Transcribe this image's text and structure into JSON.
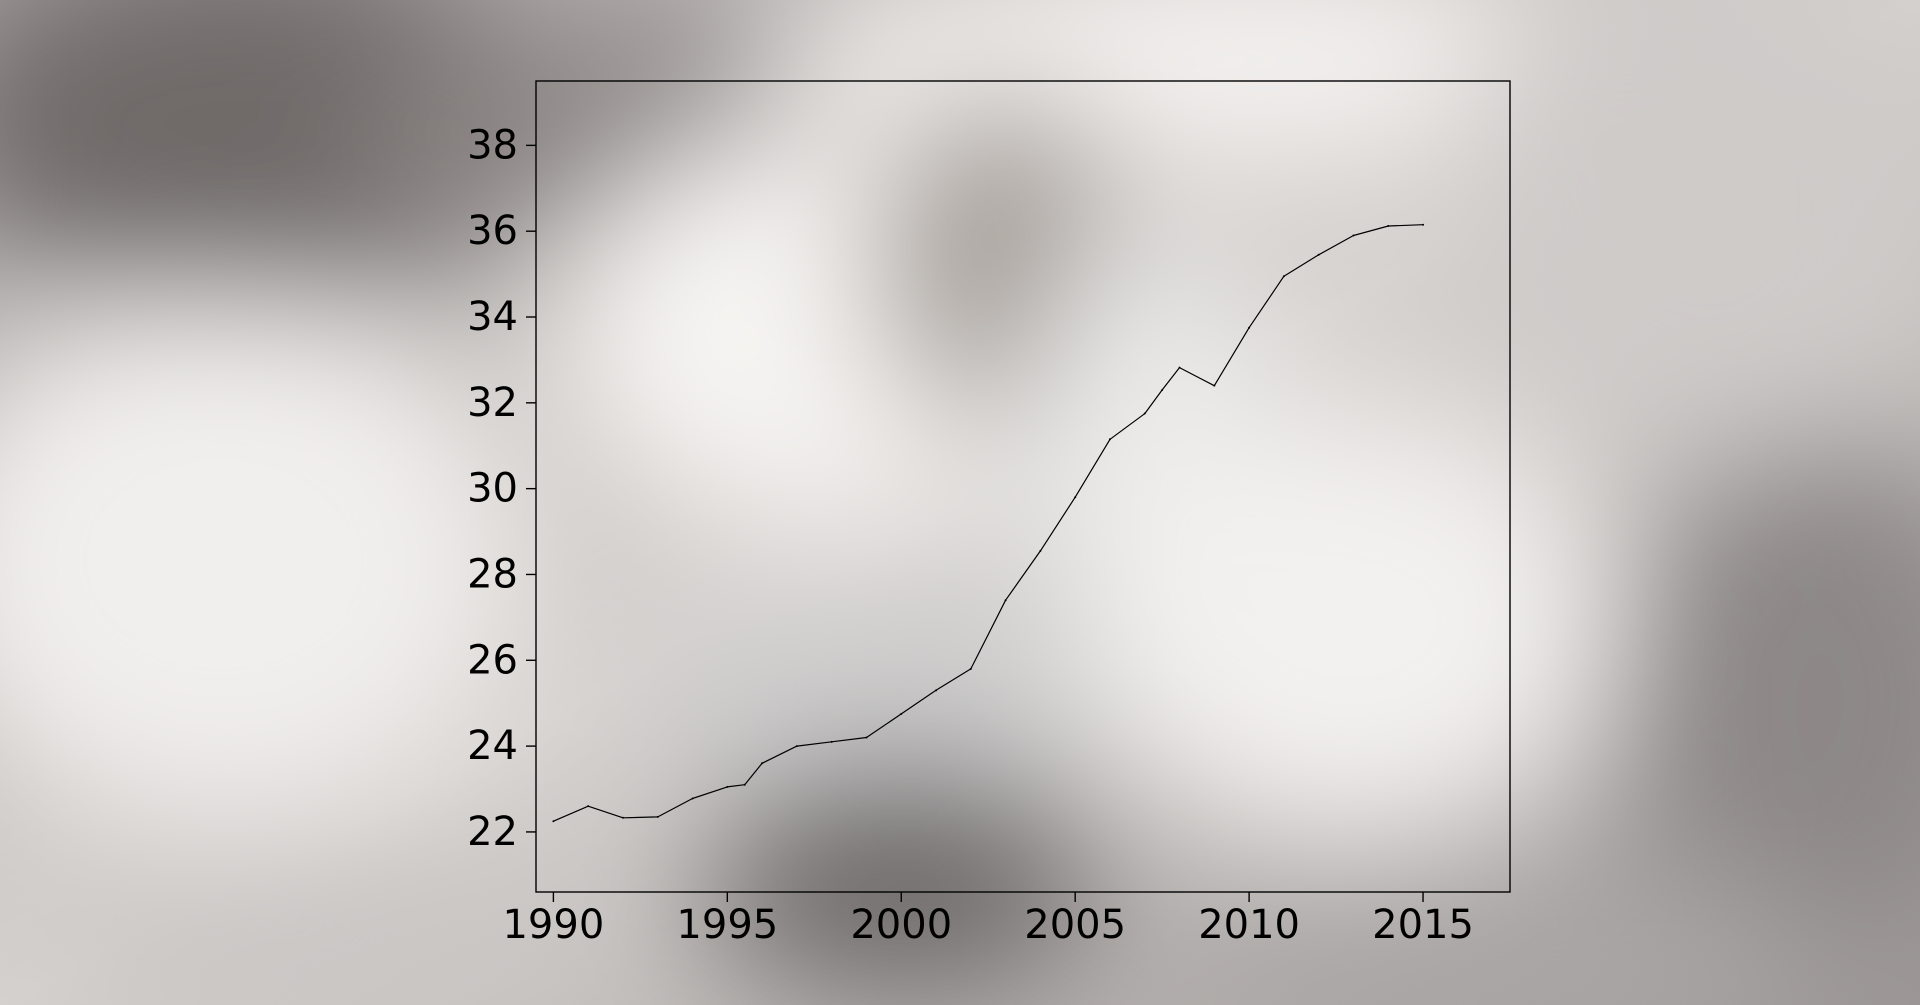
{
  "colors": {
    "line": "#000000",
    "axes": "#000000",
    "background_light": "#f2f0ee",
    "background_mid": "#bdb8b6",
    "background_dark": "#6f6a69"
  },
  "chart_data": {
    "type": "line",
    "title": "",
    "xlabel": "",
    "ylabel": "",
    "xlim": [
      1989.5,
      2017.5
    ],
    "ylim": [
      20.6,
      39.5
    ],
    "x_ticks": [
      1990,
      1995,
      2000,
      2005,
      2010,
      2015
    ],
    "y_ticks": [
      22,
      24,
      26,
      28,
      30,
      32,
      34,
      36,
      38
    ],
    "x_tick_labels": [
      "1990",
      "1995",
      "2000",
      "2005",
      "2010",
      "2015"
    ],
    "y_tick_labels": [
      "22",
      "24",
      "26",
      "28",
      "30",
      "32",
      "34",
      "36",
      "38"
    ],
    "grid": false,
    "legend": "none",
    "series": [
      {
        "x": [
          1990,
          1991,
          1992,
          1993,
          1994,
          1995,
          1995.5,
          1996,
          1997,
          1998,
          1999,
          2000,
          2001,
          2002,
          2003,
          2004,
          2005,
          2006,
          2007,
          2007.5,
          2008,
          2009,
          2010,
          2011,
          2012,
          2013,
          2014,
          2015
        ],
        "y": [
          22.25,
          22.6,
          22.33,
          22.35,
          22.78,
          23.05,
          23.1,
          23.6,
          24.0,
          24.1,
          24.2,
          24.75,
          25.3,
          25.8,
          27.4,
          28.55,
          29.8,
          31.15,
          31.75,
          32.3,
          32.82,
          32.4,
          33.75,
          34.95,
          35.45,
          35.9,
          36.12,
          36.15
        ]
      }
    ]
  }
}
